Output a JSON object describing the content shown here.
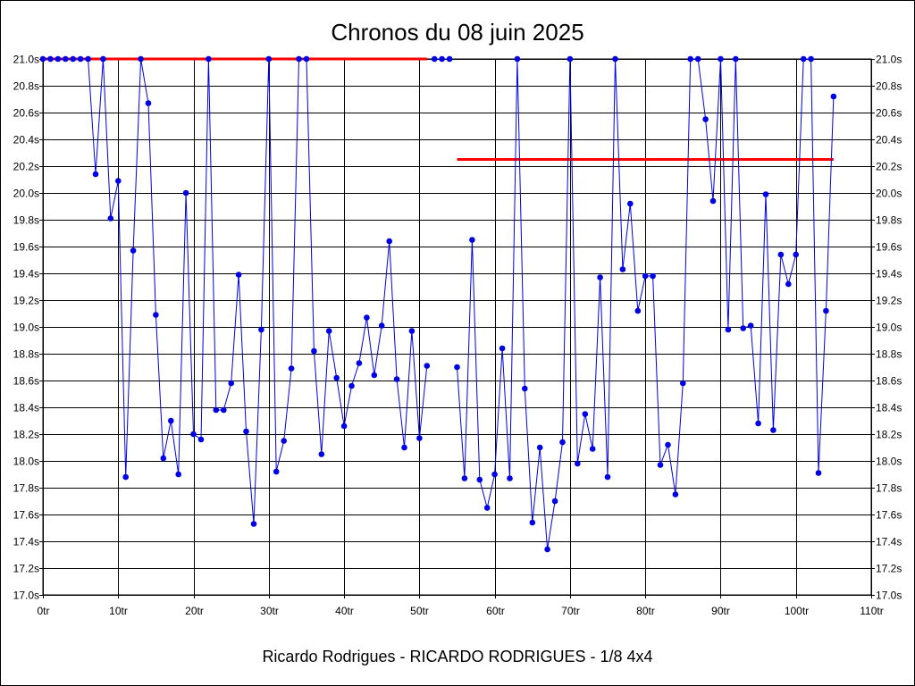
{
  "chart_data": {
    "type": "line",
    "title": "Chronos du 08 juin 2025",
    "subtitle": "Ricardo Rodrigues - RICARDO RODRIGUES - 1/8 4x4",
    "x_tick_labels": [
      "0tr",
      "10tr",
      "20tr",
      "30tr",
      "40tr",
      "50tr",
      "60tr",
      "70tr",
      "80tr",
      "90tr",
      "100tr",
      "110tr"
    ],
    "y_tick_labels": [
      "17.0s",
      "17.2s",
      "17.4s",
      "17.6s",
      "17.8s",
      "18.0s",
      "18.2s",
      "18.4s",
      "18.6s",
      "18.8s",
      "19.0s",
      "19.2s",
      "19.4s",
      "19.6s",
      "19.8s",
      "20.0s",
      "20.2s",
      "20.4s",
      "20.6s",
      "20.8s",
      "21.0s"
    ],
    "xlim": [
      0,
      110
    ],
    "ylim": [
      17.0,
      21.0
    ],
    "grid": true,
    "colors": {
      "series": "#0000e6",
      "reference": "#ff0000",
      "grid": "#000000",
      "border": "#000000"
    },
    "series": [
      {
        "segments": [
          [
            [
              0,
              21.0
            ],
            [
              1,
              21.0
            ],
            [
              2,
              21.0
            ],
            [
              3,
              21.0
            ],
            [
              4,
              21.0
            ],
            [
              5,
              21.0
            ],
            [
              6,
              21.0
            ],
            [
              7,
              20.14
            ],
            [
              8,
              21.0
            ],
            [
              9,
              19.81
            ],
            [
              10,
              20.09
            ],
            [
              11,
              17.88
            ],
            [
              12,
              19.57
            ],
            [
              13,
              21.0
            ],
            [
              14,
              20.67
            ],
            [
              15,
              19.09
            ],
            [
              16,
              18.02
            ],
            [
              17,
              18.3
            ],
            [
              18,
              17.9
            ],
            [
              19,
              20.0
            ],
            [
              20,
              18.2
            ],
            [
              21,
              18.16
            ],
            [
              22,
              21.0
            ],
            [
              23,
              18.38
            ],
            [
              24,
              18.38
            ],
            [
              25,
              18.58
            ],
            [
              26,
              19.39
            ],
            [
              27,
              18.22
            ],
            [
              28,
              17.53
            ],
            [
              29,
              18.98
            ],
            [
              30,
              21.0
            ],
            [
              31,
              17.92
            ],
            [
              32,
              18.15
            ],
            [
              33,
              18.69
            ],
            [
              34,
              21.0
            ],
            [
              35,
              21.0
            ],
            [
              36,
              18.82
            ],
            [
              37,
              18.05
            ],
            [
              38,
              18.97
            ],
            [
              39,
              18.62
            ],
            [
              40,
              18.26
            ],
            [
              41,
              18.56
            ],
            [
              42,
              18.73
            ],
            [
              43,
              19.07
            ],
            [
              44,
              18.64
            ],
            [
              45,
              19.01
            ],
            [
              46,
              19.64
            ],
            [
              47,
              18.61
            ],
            [
              48,
              18.1
            ],
            [
              49,
              18.97
            ],
            [
              50,
              18.17
            ],
            [
              51,
              18.71
            ]
          ],
          [
            [
              52,
              21.0
            ],
            [
              53,
              21.0
            ],
            [
              54,
              21.0
            ]
          ],
          [
            [
              55,
              18.7
            ],
            [
              56,
              17.87
            ],
            [
              57,
              19.65
            ],
            [
              58,
              17.86
            ],
            [
              59,
              17.65
            ],
            [
              60,
              17.9
            ],
            [
              61,
              18.84
            ],
            [
              62,
              17.87
            ],
            [
              63,
              21.0
            ],
            [
              64,
              18.54
            ],
            [
              65,
              17.54
            ],
            [
              66,
              18.1
            ],
            [
              67,
              17.34
            ],
            [
              68,
              17.7
            ],
            [
              69,
              18.14
            ],
            [
              70,
              21.0
            ],
            [
              71,
              17.98
            ],
            [
              72,
              18.35
            ],
            [
              73,
              18.09
            ],
            [
              74,
              19.37
            ],
            [
              75,
              17.88
            ],
            [
              76,
              21.0
            ],
            [
              77,
              19.43
            ],
            [
              78,
              19.92
            ],
            [
              79,
              19.12
            ],
            [
              80,
              19.38
            ],
            [
              81,
              19.38
            ],
            [
              82,
              17.97
            ],
            [
              83,
              18.12
            ],
            [
              84,
              17.75
            ],
            [
              85,
              18.58
            ],
            [
              86,
              21.0
            ],
            [
              87,
              21.0
            ],
            [
              88,
              20.55
            ],
            [
              89,
              19.94
            ],
            [
              90,
              21.0
            ],
            [
              91,
              18.98
            ],
            [
              92,
              21.0
            ],
            [
              93,
              18.99
            ],
            [
              94,
              19.01
            ],
            [
              95,
              18.28
            ],
            [
              96,
              19.99
            ],
            [
              97,
              18.23
            ],
            [
              98,
              19.54
            ],
            [
              99,
              19.32
            ],
            [
              100,
              19.54
            ],
            [
              101,
              21.0
            ],
            [
              102,
              21.0
            ],
            [
              103,
              17.91
            ],
            [
              104,
              19.12
            ],
            [
              105,
              20.72
            ]
          ]
        ]
      }
    ],
    "reference_lines": [
      {
        "x": [
          0,
          51
        ],
        "y": 21.0
      },
      {
        "x": [
          55,
          105
        ],
        "y": 20.25
      }
    ]
  }
}
